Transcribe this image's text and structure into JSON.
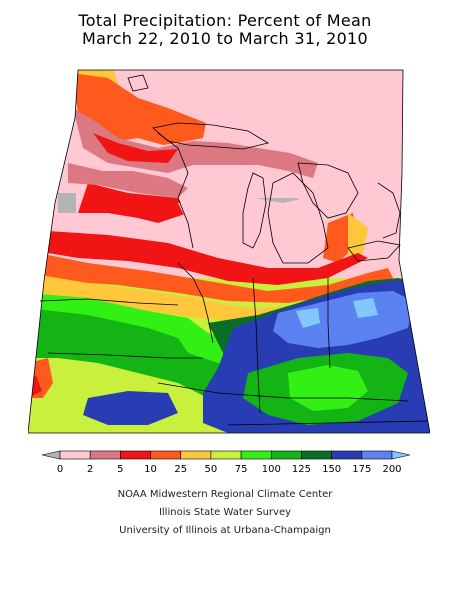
{
  "title": {
    "line1": "Total Precipitation: Percent of Mean",
    "line2": "March 22, 2010 to March 31, 2010"
  },
  "legend": {
    "tick_labels": [
      "0",
      "2",
      "5",
      "10",
      "25",
      "50",
      "75",
      "100",
      "125",
      "150",
      "175",
      "200"
    ],
    "colors": [
      "#b4b4b4",
      "#ffc8d2",
      "#dc7882",
      "#f01414",
      "#ff5a1e",
      "#ffc83c",
      "#c8f03c",
      "#32f014",
      "#14b414",
      "#096e28",
      "#283cb4",
      "#5a82f0",
      "#82c8ff"
    ]
  },
  "map": {
    "colors": {
      "gray": "#b4b4b4",
      "pink": "#ffc8d2",
      "rose": "#dc7882",
      "red": "#f01414",
      "orange": "#ff5a1e",
      "yellow": "#ffc83c",
      "lime": "#c8f03c",
      "green": "#32f014",
      "mid_green": "#14b414",
      "dark_green": "#096e28",
      "blue": "#283cb4",
      "light_blue": "#5a82f0",
      "sky": "#82c8ff"
    }
  },
  "credits": {
    "line1": "NOAA Midwestern Regional Climate Center",
    "line2": "Illinois State Water Survey",
    "line3": "University of Illinois at Urbana-Champaign"
  }
}
